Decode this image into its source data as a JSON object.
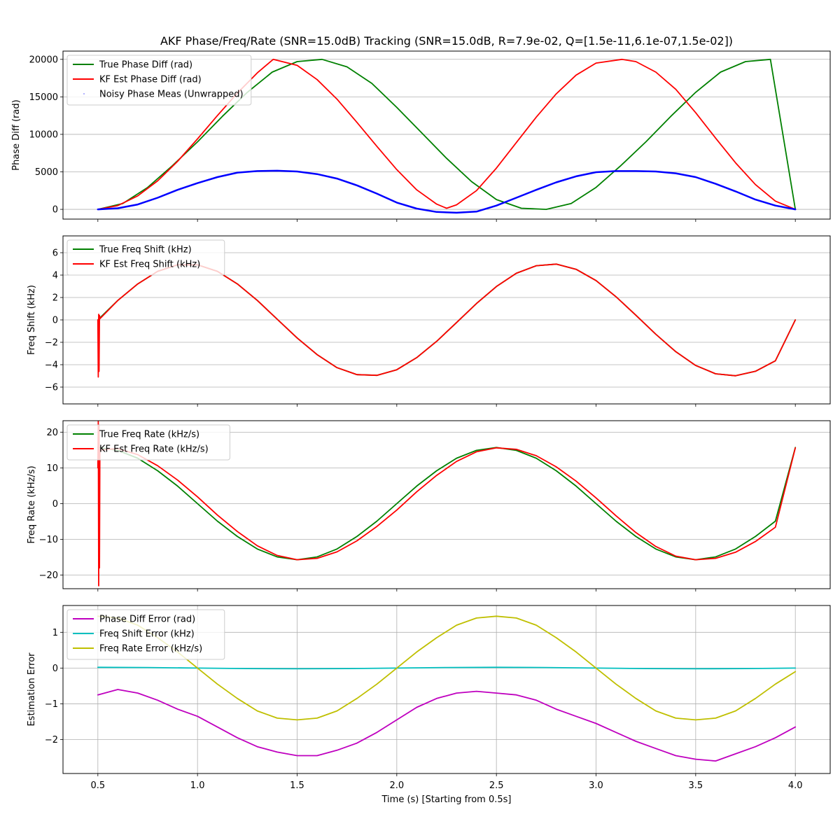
{
  "chart_data": [
    {
      "type": "line",
      "title": "AKF Phase/Freq/Rate (SNR=15.0dB) Tracking (SNR=15.0dB, R=7.9e-02, Q=[1.5e-11,6.1e-07,1.5e-02])",
      "xlabel": "",
      "ylabel": "Phase Diff (rad)",
      "xlim": [
        0.325,
        4.175
      ],
      "ylim": [
        -1300,
        21100
      ],
      "xticks": [
        0.5,
        1.0,
        1.5,
        2.0,
        2.5,
        3.0,
        3.5,
        4.0
      ],
      "xticklabels_visible": false,
      "yticks": [
        0,
        5000,
        10000,
        15000,
        20000
      ],
      "yticklabels": [
        "0",
        "5000",
        "10000",
        "15000",
        "20000"
      ],
      "grid": "y",
      "legend": "upper left",
      "series": [
        {
          "name": "True Phase Diff (rad)",
          "color": "#008000",
          "x": [
            0.5,
            0.625,
            0.75,
            0.875,
            1.0,
            1.125,
            1.25,
            1.375,
            1.5,
            1.625,
            1.75,
            1.875,
            2.0,
            2.125,
            2.25,
            2.375,
            2.5,
            2.625,
            2.75,
            2.875,
            3.0,
            3.125,
            3.25,
            3.375,
            3.5,
            3.625,
            3.75,
            3.875,
            4.0
          ],
          "y": [
            0,
            785,
            2930,
            5850,
            9000,
            12400,
            15600,
            18300,
            19700,
            20000,
            19000,
            16800,
            13600,
            10200,
            6800,
            3700,
            1300,
            150,
            0,
            785,
            2930,
            5850,
            9000,
            12400,
            15600,
            18300,
            19700,
            20000,
            0
          ]
        },
        {
          "name": "KF Est Phase Diff (rad)",
          "color": "#ff0000",
          "x": [
            0.5,
            0.6,
            0.7,
            0.8,
            0.9,
            1.0,
            1.1,
            1.2,
            1.3,
            1.38,
            1.5,
            1.6,
            1.7,
            1.8,
            1.9,
            2.0,
            2.1,
            2.2,
            2.25,
            2.3,
            2.4,
            2.5,
            2.6,
            2.7,
            2.8,
            2.9,
            3.0,
            3.13,
            3.2,
            3.3,
            3.4,
            3.5,
            3.6,
            3.7,
            3.8,
            3.9,
            4.0
          ],
          "y": [
            0,
            500,
            1800,
            3800,
            6400,
            9400,
            12500,
            15500,
            18200,
            20000,
            19200,
            17300,
            14700,
            11600,
            8400,
            5300,
            2600,
            700,
            150,
            600,
            2500,
            5500,
            8900,
            12300,
            15400,
            17900,
            19500,
            20000,
            19700,
            18300,
            16000,
            12900,
            9500,
            6200,
            3300,
            1100,
            0
          ]
        },
        {
          "name": "Noisy Phase Meas (Unwrapped)",
          "color": "#0000ff",
          "x": [
            0.5,
            0.6,
            0.7,
            0.8,
            0.9,
            1.0,
            1.1,
            1.2,
            1.3,
            1.4,
            1.5,
            1.6,
            1.7,
            1.8,
            1.9,
            2.0,
            2.1,
            2.2,
            2.3,
            2.4,
            2.5,
            2.6,
            2.7,
            2.8,
            2.9,
            3.0,
            3.1,
            3.2,
            3.3,
            3.4,
            3.5,
            3.6,
            3.7,
            3.8,
            3.9,
            4.0
          ],
          "y": [
            0,
            150,
            650,
            1550,
            2600,
            3500,
            4300,
            4900,
            5100,
            5150,
            5050,
            4700,
            4100,
            3200,
            2100,
            900,
            100,
            -350,
            -450,
            -300,
            500,
            1550,
            2600,
            3600,
            4400,
            4950,
            5100,
            5100,
            5050,
            4800,
            4300,
            3400,
            2400,
            1300,
            500,
            0
          ]
        }
      ]
    },
    {
      "type": "line",
      "ylabel": "Freq Shift (kHz)",
      "xlim": [
        0.325,
        4.175
      ],
      "ylim": [
        -7.5,
        7.5
      ],
      "xticks": [
        0.5,
        1.0,
        1.5,
        2.0,
        2.5,
        3.0,
        3.5,
        4.0
      ],
      "xticklabels_visible": false,
      "yticks": [
        -6,
        -4,
        -2,
        0,
        2,
        4,
        6
      ],
      "yticklabels": [
        "−6",
        "−4",
        "−2",
        "0",
        "2",
        "4",
        "6"
      ],
      "grid": "y",
      "legend": "upper left",
      "series": [
        {
          "name": "True Freq Shift (kHz)",
          "color": "#008000",
          "x": [
            0.5,
            0.6,
            0.7,
            0.8,
            0.9,
            1.0,
            1.1,
            1.2,
            1.3,
            1.4,
            1.5,
            1.6,
            1.7,
            1.8,
            1.9,
            2.0,
            2.1,
            2.2,
            2.3,
            2.4,
            2.5,
            2.6,
            2.7,
            2.8,
            2.9,
            3.0,
            3.1,
            3.2,
            3.3,
            3.4,
            3.5,
            3.6,
            3.7,
            3.8,
            3.9,
            4.0
          ],
          "y": [
            0,
            1.74,
            3.21,
            4.34,
            4.92,
            4.92,
            4.34,
            3.21,
            1.74,
            0.06,
            -1.61,
            -3.1,
            -4.26,
            -4.89,
            -4.95,
            -4.45,
            -3.37,
            -1.91,
            -0.24,
            1.46,
            2.98,
            4.16,
            4.84,
            4.98,
            4.52,
            3.51,
            2.07,
            0.42,
            -1.28,
            -2.84,
            -4.07,
            -4.81,
            -4.99,
            -4.59,
            -3.65,
            0
          ]
        },
        {
          "name": "KF Est Freq Shift (kHz)",
          "color": "#ff0000",
          "x": [
            0.5,
            0.502,
            0.504,
            0.506,
            0.508,
            0.51,
            0.6,
            0.7,
            0.8,
            0.9,
            1.0,
            1.1,
            1.2,
            1.3,
            1.4,
            1.5,
            1.6,
            1.7,
            1.8,
            1.9,
            2.0,
            2.1,
            2.2,
            2.3,
            2.4,
            2.5,
            2.6,
            2.7,
            2.8,
            2.9,
            3.0,
            3.1,
            3.2,
            3.3,
            3.4,
            3.5,
            3.6,
            3.7,
            3.8,
            3.9,
            4.0
          ],
          "y": [
            0,
            -5.1,
            0.5,
            -4.6,
            0.4,
            0.1,
            1.74,
            3.21,
            4.34,
            4.92,
            4.92,
            4.34,
            3.21,
            1.74,
            0.06,
            -1.61,
            -3.1,
            -4.26,
            -4.89,
            -4.95,
            -4.45,
            -3.37,
            -1.91,
            -0.24,
            1.46,
            2.98,
            4.16,
            4.84,
            4.98,
            4.52,
            3.51,
            2.07,
            0.42,
            -1.28,
            -2.84,
            -4.07,
            -4.81,
            -4.99,
            -4.59,
            -3.65,
            0
          ]
        }
      ]
    },
    {
      "type": "line",
      "ylabel": "Freq Rate (kHz/s)",
      "xlim": [
        0.325,
        4.175
      ],
      "ylim": [
        -23.8,
        23.2
      ],
      "xticks": [
        0.5,
        1.0,
        1.5,
        2.0,
        2.5,
        3.0,
        3.5,
        4.0
      ],
      "xticklabels_visible": false,
      "yticks": [
        -20,
        -10,
        0,
        10,
        20
      ],
      "yticklabels": [
        "−20",
        "−10",
        "0",
        "10",
        "20"
      ],
      "grid": "y",
      "legend": "upper left",
      "series": [
        {
          "name": "True Freq Rate (kHz/s)",
          "color": "#008000",
          "x": [
            0.5,
            0.6,
            0.7,
            0.8,
            0.9,
            1.0,
            1.1,
            1.2,
            1.3,
            1.4,
            1.5,
            1.6,
            1.7,
            1.8,
            1.9,
            2.0,
            2.1,
            2.2,
            2.3,
            2.4,
            2.5,
            2.6,
            2.7,
            2.8,
            2.9,
            3.0,
            3.1,
            3.2,
            3.3,
            3.4,
            3.5,
            3.6,
            3.7,
            3.8,
            3.9,
            4.0
          ],
          "y": [
            15.7,
            14.9,
            12.7,
            9.2,
            4.9,
            0,
            -4.9,
            -9.2,
            -12.7,
            -14.9,
            -15.7,
            -14.9,
            -12.7,
            -9.2,
            -4.9,
            0,
            4.9,
            9.2,
            12.7,
            14.9,
            15.7,
            14.9,
            12.7,
            9.2,
            4.9,
            0,
            -4.9,
            -9.2,
            -12.7,
            -14.9,
            -15.7,
            -14.9,
            -12.7,
            -9.2,
            -4.9,
            15.7
          ]
        },
        {
          "name": "KF Est Freq Rate (kHz/s)",
          "color": "#ff0000",
          "x": [
            0.5,
            0.502,
            0.504,
            0.506,
            0.508,
            0.51,
            0.6,
            0.7,
            0.8,
            0.9,
            1.0,
            1.1,
            1.2,
            1.3,
            1.4,
            1.5,
            1.6,
            1.7,
            1.8,
            1.9,
            2.0,
            2.1,
            2.2,
            2.3,
            2.4,
            2.5,
            2.6,
            2.7,
            2.8,
            2.9,
            3.0,
            3.1,
            3.2,
            3.3,
            3.4,
            3.5,
            3.6,
            3.7,
            3.8,
            3.9,
            4.0
          ],
          "y": [
            10,
            23,
            -23,
            22,
            -18,
            15,
            15.4,
            13.7,
            10.6,
            6.6,
            1.9,
            -3.2,
            -7.8,
            -11.8,
            -14.5,
            -15.7,
            -15.3,
            -13.5,
            -10.4,
            -6.4,
            -1.8,
            3.3,
            7.9,
            11.8,
            14.5,
            15.6,
            15.2,
            13.4,
            10.3,
            6.3,
            1.6,
            -3.4,
            -8.1,
            -12,
            -14.7,
            -15.7,
            -15.3,
            -13.6,
            -10.6,
            -6.6,
            15.6
          ]
        }
      ]
    },
    {
      "type": "line",
      "xlabel": "Time (s) [Starting from 0.5s]",
      "ylabel": "Estimation Error",
      "xlim": [
        0.325,
        4.175
      ],
      "ylim": [
        -2.95,
        1.75
      ],
      "xticks": [
        0.5,
        1.0,
        1.5,
        2.0,
        2.5,
        3.0,
        3.5,
        4.0
      ],
      "xticklabels": [
        "0.5",
        "1.0",
        "1.5",
        "2.0",
        "2.5",
        "3.0",
        "3.5",
        "4.0"
      ],
      "yticks": [
        -2,
        -1,
        0,
        1
      ],
      "yticklabels": [
        "−2",
        "−1",
        "0",
        "1"
      ],
      "grid": "both",
      "legend": "upper left",
      "series": [
        {
          "name": "Phase Diff Error (rad)",
          "color": "#bf00bf",
          "x": [
            0.5,
            0.6,
            0.7,
            0.8,
            0.9,
            1.0,
            1.1,
            1.2,
            1.3,
            1.4,
            1.5,
            1.6,
            1.7,
            1.8,
            1.9,
            2.0,
            2.1,
            2.2,
            2.3,
            2.4,
            2.5,
            2.6,
            2.7,
            2.8,
            2.9,
            3.0,
            3.1,
            3.2,
            3.3,
            3.4,
            3.5,
            3.6,
            3.7,
            3.8,
            3.9,
            4.0
          ],
          "y": [
            -0.75,
            -0.6,
            -0.7,
            -0.9,
            -1.15,
            -1.35,
            -1.65,
            -1.95,
            -2.2,
            -2.35,
            -2.45,
            -2.45,
            -2.3,
            -2.1,
            -1.8,
            -1.45,
            -1.1,
            -0.85,
            -0.7,
            -0.65,
            -0.7,
            -0.75,
            -0.9,
            -1.15,
            -1.35,
            -1.55,
            -1.8,
            -2.05,
            -2.25,
            -2.45,
            -2.55,
            -2.6,
            -2.4,
            -2.2,
            -1.95,
            -1.65
          ]
        },
        {
          "name": "Freq Shift Error (kHz)",
          "color": "#00bfbf",
          "x": [
            0.5,
            0.75,
            1.0,
            1.25,
            1.5,
            1.75,
            2.0,
            2.25,
            2.5,
            2.75,
            3.0,
            3.25,
            3.5,
            3.75,
            4.0
          ],
          "y": [
            0.02,
            0.015,
            0.0,
            -0.015,
            -0.02,
            -0.015,
            0.0,
            0.015,
            0.02,
            0.015,
            0.0,
            -0.015,
            -0.02,
            -0.015,
            0.0
          ]
        },
        {
          "name": "Freq Rate Error (kHz/s)",
          "color": "#bfbf00",
          "x": [
            0.5,
            0.6,
            0.7,
            0.8,
            0.9,
            1.0,
            1.1,
            1.2,
            1.3,
            1.4,
            1.5,
            1.6,
            1.7,
            1.8,
            1.9,
            2.0,
            2.1,
            2.2,
            2.3,
            2.4,
            2.5,
            2.6,
            2.7,
            2.8,
            2.9,
            3.0,
            3.1,
            3.2,
            3.3,
            3.4,
            3.5,
            3.6,
            3.7,
            3.8,
            3.9,
            4.0
          ],
          "y": [
            1.45,
            1.4,
            1.2,
            0.85,
            0.45,
            0,
            -0.45,
            -0.85,
            -1.2,
            -1.4,
            -1.45,
            -1.4,
            -1.2,
            -0.85,
            -0.45,
            0,
            0.45,
            0.85,
            1.2,
            1.4,
            1.45,
            1.4,
            1.2,
            0.85,
            0.45,
            0,
            -0.45,
            -0.85,
            -1.2,
            -1.4,
            -1.45,
            -1.4,
            -1.2,
            -0.85,
            -0.45,
            -0.1
          ]
        }
      ]
    }
  ]
}
